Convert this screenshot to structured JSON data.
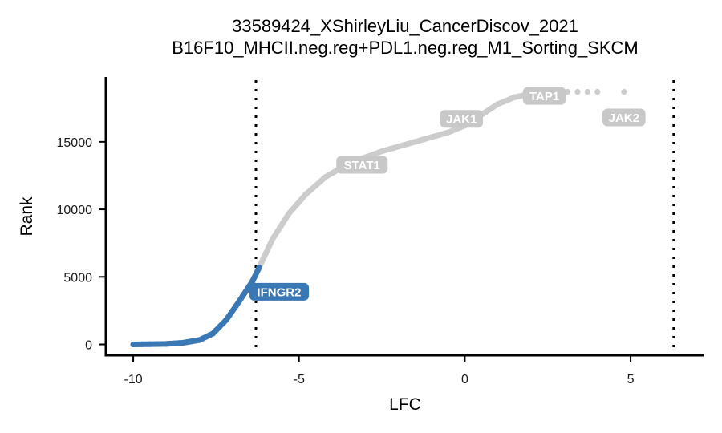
{
  "chart_data": {
    "type": "scatter",
    "title_lines": [
      "33589424_XShirleyLiu_CancerDiscov_2021",
      "B16F10_MHCII.neg.reg+PDL1.neg.reg_M1_Sorting_SKCM"
    ],
    "xlabel": "LFC",
    "ylabel": "Rank",
    "xlim": [
      -10.8,
      7.2
    ],
    "ylim": [
      -800,
      19800
    ],
    "x_ticks": [
      -10,
      -5,
      0,
      5
    ],
    "x_tick_labels": [
      "-10",
      "-5",
      "0",
      "5"
    ],
    "y_ticks": [
      0,
      5000,
      10000,
      15000
    ],
    "y_tick_labels": [
      "0",
      "5000",
      "10000",
      "15000"
    ],
    "cutoffs": [
      -6.3,
      6.3
    ],
    "colors": {
      "highlight": "#3a78b5",
      "background": "#cccccc",
      "label_highlight": "#3a78b5",
      "label_background": "#c8c8c8"
    },
    "curve": {
      "highlighted_segment": [
        [
          -10.0,
          0
        ],
        [
          -9.0,
          40
        ],
        [
          -8.5,
          120
        ],
        [
          -8.0,
          330
        ],
        [
          -7.6,
          800
        ],
        [
          -7.2,
          1800
        ],
        [
          -6.8,
          3200
        ],
        [
          -6.4,
          4700
        ],
        [
          -6.2,
          5700
        ]
      ],
      "background_segment": [
        [
          -6.2,
          5700
        ],
        [
          -5.8,
          7800
        ],
        [
          -5.3,
          9700
        ],
        [
          -4.8,
          11100
        ],
        [
          -4.2,
          12400
        ],
        [
          -3.5,
          13400
        ],
        [
          -2.5,
          14300
        ],
        [
          -1.5,
          15000
        ],
        [
          -0.5,
          15700
        ],
        [
          0.0,
          16200
        ],
        [
          0.5,
          17000
        ],
        [
          1.0,
          17800
        ],
        [
          1.5,
          18300
        ],
        [
          2.0,
          18550
        ],
        [
          2.5,
          18650
        ],
        [
          3.0,
          18700
        ]
      ],
      "outliers": [
        [
          3.1,
          18700
        ],
        [
          3.4,
          18700
        ],
        [
          3.7,
          18700
        ],
        [
          4.0,
          18700
        ],
        [
          4.8,
          18700
        ]
      ]
    },
    "gene_labels": [
      {
        "text": "IFNGR2",
        "x": -5.6,
        "y": 3900,
        "highlighted": true
      },
      {
        "text": "STAT1",
        "x": -3.1,
        "y": 13300,
        "highlighted": false
      },
      {
        "text": "JAK1",
        "x": -0.1,
        "y": 16700,
        "highlighted": false
      },
      {
        "text": "TAP1",
        "x": 2.4,
        "y": 18400,
        "highlighted": false
      },
      {
        "text": "JAK2",
        "x": 4.8,
        "y": 16800,
        "highlighted": false
      }
    ]
  }
}
